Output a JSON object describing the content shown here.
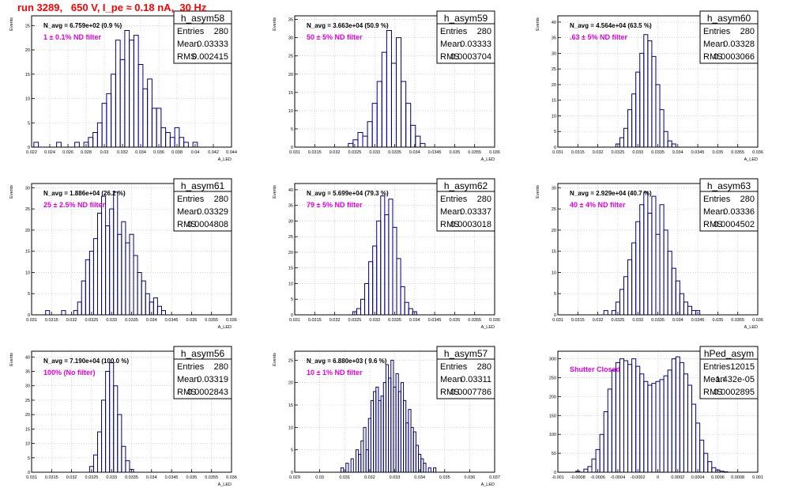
{
  "run_title": "run 3289,   650 V, I_pe ≈ 0.18 nA,  30 Hz",
  "colors": {
    "line": "#000080",
    "annotation": "#e000e0",
    "title": "#ff0000",
    "grid": "#bbbbbb"
  },
  "chart_data": [
    {
      "type": "histogram",
      "name": "h_asym58",
      "stats": [
        [
          "Entries",
          "280"
        ],
        [
          "Mean",
          "0.03333"
        ],
        [
          "RMS",
          "0.002415"
        ]
      ],
      "navg": "N_avg = 6.759e+02 (0.9 %)",
      "filter": "1 ± 0.1% ND filter",
      "ylabel": "Events",
      "xlabel": "A_LED",
      "xlim": [
        0.022,
        0.044
      ],
      "ylim": [
        0,
        27
      ],
      "xticks": [
        0.022,
        0.024,
        0.026,
        0.028,
        0.03,
        0.032,
        0.034,
        0.036,
        0.038,
        0.04,
        0.042,
        0.044
      ],
      "xtick_labels": [
        "0.022",
        "0.024",
        "0.026",
        "0.028",
        "0.03",
        "0.032",
        "0.034",
        "0.036",
        "0.038",
        "0.04",
        "0.042",
        "0.044"
      ],
      "yticks": [
        0,
        5,
        10,
        15,
        20,
        25
      ],
      "ytick_labels": [
        "0",
        "5",
        "10",
        "15",
        "20",
        "25"
      ],
      "bins": {
        "x": [
          0.0225,
          0.025,
          0.027,
          0.028,
          0.0285,
          0.029,
          0.0295,
          0.03,
          0.0305,
          0.031,
          0.0315,
          0.032,
          0.0325,
          0.033,
          0.0335,
          0.034,
          0.0345,
          0.035,
          0.0355,
          0.036,
          0.0365,
          0.037,
          0.0375,
          0.038,
          0.0385,
          0.039,
          0.04
        ],
        "y": [
          1,
          1,
          1,
          1,
          2,
          3,
          5,
          9,
          11,
          15,
          22,
          18,
          24,
          22,
          23,
          17,
          12,
          14,
          8,
          8,
          4,
          3,
          2,
          4,
          2,
          1,
          1
        ]
      }
    },
    {
      "type": "histogram",
      "name": "h_asym59",
      "stats": [
        [
          "Entries",
          "280"
        ],
        [
          "Mean",
          "0.03333"
        ],
        [
          "RMS",
          "0.0003704"
        ]
      ],
      "navg": "N_avg = 3.663e+04 (50.9 %)",
      "filter": "50 ± 5% ND filter",
      "ylabel": "Events",
      "xlabel": "A_LED",
      "xlim": [
        0.031,
        0.036
      ],
      "ylim": [
        0,
        36
      ],
      "xticks": [
        0.031,
        0.0315,
        0.032,
        0.0325,
        0.033,
        0.0335,
        0.034,
        0.0345,
        0.035,
        0.0355,
        0.036
      ],
      "xtick_labels": [
        "0.031",
        "0.0315",
        "0.032",
        "0.0325",
        "0.033",
        "0.0335",
        "0.034",
        "0.0345",
        "0.035",
        "0.0355",
        "0.036"
      ],
      "yticks": [
        0,
        5,
        10,
        15,
        20,
        25,
        30,
        35
      ],
      "ytick_labels": [
        "0",
        "5",
        "10",
        "15",
        "20",
        "25",
        "30",
        "35"
      ],
      "bins": {
        "x": [
          0.0324,
          0.03252,
          0.03264,
          0.03276,
          0.03288,
          0.033,
          0.03312,
          0.03324,
          0.03336,
          0.03348,
          0.0336,
          0.03372,
          0.03384,
          0.03396,
          0.03408,
          0.0342
        ],
        "y": [
          1,
          2,
          4,
          3,
          7,
          12,
          18,
          26,
          32,
          23,
          30,
          18,
          12,
          6,
          3,
          1
        ]
      }
    },
    {
      "type": "histogram",
      "name": "h_asym60",
      "stats": [
        [
          "Entries",
          "280"
        ],
        [
          "Mean",
          "0.03328"
        ],
        [
          "RMS",
          "0.0003066"
        ]
      ],
      "navg": "N_avg = 4.564e+04 (63.5 %)",
      "filter": ".63 ± 5% ND filter",
      "ylabel": "Events",
      "xlabel": "A_LED",
      "xlim": [
        0.031,
        0.036
      ],
      "ylim": [
        0,
        42
      ],
      "xticks": [
        0.031,
        0.0315,
        0.032,
        0.0325,
        0.033,
        0.0335,
        0.034,
        0.0345,
        0.035,
        0.0355,
        0.036
      ],
      "xtick_labels": [
        "0.031",
        "0.0315",
        "0.032",
        "0.0325",
        "0.033",
        "0.0335",
        "0.034",
        "0.0345",
        "0.035",
        "0.0355",
        "0.036"
      ],
      "yticks": [
        0,
        5,
        10,
        15,
        20,
        25,
        30,
        35,
        40
      ],
      "ytick_labels": [
        "0",
        "5",
        "10",
        "15",
        "20",
        "25",
        "30",
        "35",
        "40"
      ],
      "bins": {
        "x": [
          0.0325,
          0.0326,
          0.0327,
          0.0328,
          0.0329,
          0.033,
          0.0331,
          0.0332,
          0.0333,
          0.0334,
          0.0335,
          0.0336,
          0.0337,
          0.0338,
          0.0339
        ],
        "y": [
          1,
          3,
          6,
          12,
          17,
          24,
          30,
          36,
          34,
          29,
          20,
          12,
          5,
          2,
          1
        ]
      }
    },
    {
      "type": "histogram",
      "name": "h_asym61",
      "stats": [
        [
          "Entries",
          "280"
        ],
        [
          "Mean",
          "0.03329"
        ],
        [
          "RMS",
          "0.0004808"
        ]
      ],
      "navg": "N_avg = 1.886e+04 (26.2 %)",
      "filter": "25 ± 2.5% ND filter",
      "ylabel": "Events",
      "xlabel": "A_LED",
      "xlim": [
        0.031,
        0.036
      ],
      "ylim": [
        0,
        31
      ],
      "xticks": [
        0.031,
        0.0315,
        0.032,
        0.0325,
        0.033,
        0.0335,
        0.034,
        0.0345,
        0.035,
        0.0355,
        0.036
      ],
      "xtick_labels": [
        "0.031",
        "0.0315",
        "0.032",
        "0.0325",
        "0.033",
        "0.0335",
        "0.034",
        "0.0345",
        "0.035",
        "0.0355",
        "0.036"
      ],
      "yticks": [
        0,
        5,
        10,
        15,
        20,
        25,
        30
      ],
      "ytick_labels": [
        "0",
        "5",
        "10",
        "15",
        "20",
        "25",
        "30"
      ],
      "bins": {
        "x": [
          0.0314,
          0.0318,
          0.0321,
          0.0322,
          0.0323,
          0.0324,
          0.0325,
          0.0326,
          0.0327,
          0.0328,
          0.0329,
          0.033,
          0.0331,
          0.0332,
          0.0333,
          0.0334,
          0.0335,
          0.0336,
          0.0337,
          0.0338,
          0.0339,
          0.034,
          0.0341,
          0.0342,
          0.0343
        ],
        "y": [
          1,
          1,
          1,
          3,
          8,
          13,
          15,
          18,
          24,
          28,
          21,
          25,
          29,
          19,
          22,
          17,
          19,
          14,
          10,
          8,
          5,
          3,
          4,
          2,
          1
        ]
      }
    },
    {
      "type": "histogram",
      "name": "h_asym62",
      "stats": [
        [
          "Entries",
          "280"
        ],
        [
          "Mean",
          "0.03337"
        ],
        [
          "RMS",
          "0.0003018"
        ]
      ],
      "navg": "N_avg = 5.699e+04 (79.3 %)",
      "filter": "79 ± 5% ND filter",
      "ylabel": "Events",
      "xlabel": "A_LED",
      "xlim": [
        0.031,
        0.036
      ],
      "ylim": [
        0,
        42
      ],
      "xticks": [
        0.031,
        0.0315,
        0.032,
        0.0325,
        0.033,
        0.0335,
        0.034,
        0.0345,
        0.035,
        0.0355,
        0.036
      ],
      "xtick_labels": [
        "0.031",
        "0.0315",
        "0.032",
        "0.0325",
        "0.033",
        "0.0335",
        "0.034",
        "0.0345",
        "0.035",
        "0.0355",
        "0.036"
      ],
      "yticks": [
        0,
        5,
        10,
        15,
        20,
        25,
        30,
        35,
        40
      ],
      "ytick_labels": [
        "0",
        "5",
        "10",
        "15",
        "20",
        "25",
        "30",
        "35",
        "40"
      ],
      "bins": {
        "x": [
          0.0325,
          0.0326,
          0.0327,
          0.0328,
          0.0329,
          0.033,
          0.0331,
          0.0332,
          0.0333,
          0.0334,
          0.0335,
          0.0336,
          0.0337,
          0.0338,
          0.0339,
          0.034
        ],
        "y": [
          1,
          2,
          5,
          10,
          17,
          22,
          30,
          38,
          32,
          37,
          28,
          18,
          9,
          4,
          2,
          1
        ]
      }
    },
    {
      "type": "histogram",
      "name": "h_asym63",
      "stats": [
        [
          "Entries",
          "280"
        ],
        [
          "Mean",
          "0.03336"
        ],
        [
          "RMS",
          "0.0004502"
        ]
      ],
      "navg": "N_avg = 2.929e+04 (40.7 %)",
      "filter": "40 ± 4% ND filter",
      "ylabel": "Events",
      "xlabel": "A_LED",
      "xlim": [
        0.031,
        0.036
      ],
      "ylim": [
        0,
        31
      ],
      "xticks": [
        0.031,
        0.0315,
        0.032,
        0.0325,
        0.033,
        0.0335,
        0.034,
        0.0345,
        0.035,
        0.0355,
        0.036
      ],
      "xtick_labels": [
        "0.031",
        "0.0315",
        "0.032",
        "0.0325",
        "0.033",
        "0.0335",
        "0.034",
        "0.0345",
        "0.035",
        "0.0355",
        "0.036"
      ],
      "yticks": [
        0,
        5,
        10,
        15,
        20,
        25,
        30
      ],
      "ytick_labels": [
        "0",
        "5",
        "10",
        "15",
        "20",
        "25",
        "30"
      ],
      "bins": {
        "x": [
          0.0322,
          0.0324,
          0.0325,
          0.0326,
          0.0327,
          0.0328,
          0.0329,
          0.033,
          0.0331,
          0.0332,
          0.0333,
          0.0334,
          0.0335,
          0.0336,
          0.0337,
          0.0338,
          0.0339,
          0.034,
          0.0341,
          0.0342,
          0.0343,
          0.0344,
          0.0345
        ],
        "y": [
          1,
          1,
          3,
          6,
          9,
          13,
          17,
          22,
          26,
          29,
          24,
          28,
          19,
          26,
          20,
          15,
          11,
          8,
          5,
          3,
          2,
          1,
          1
        ]
      }
    },
    {
      "type": "histogram",
      "name": "h_asym56",
      "stats": [
        [
          "Entries",
          "280"
        ],
        [
          "Mean",
          "0.03319"
        ],
        [
          "RMS",
          "0.0002843"
        ]
      ],
      "navg": "N_avg = 7.190e+04 (100.0 %)",
      "filter": "100% (No filter)",
      "ylabel": "Events",
      "xlabel": "A_LED",
      "xlim": [
        0.031,
        0.036
      ],
      "ylim": [
        0,
        42
      ],
      "xticks": [
        0.031,
        0.0315,
        0.032,
        0.0325,
        0.033,
        0.0335,
        0.034,
        0.0345,
        0.035,
        0.0355,
        0.036
      ],
      "xtick_labels": [
        "0.031",
        "0.0315",
        "0.032",
        "0.0325",
        "0.033",
        "0.0335",
        "0.034",
        "0.0345",
        "0.035",
        "0.0355",
        "0.036"
      ],
      "yticks": [
        0,
        5,
        10,
        15,
        20,
        25,
        30,
        35,
        40
      ],
      "ytick_labels": [
        "0",
        "5",
        "10",
        "15",
        "20",
        "25",
        "30",
        "35",
        "40"
      ],
      "bins": {
        "x": [
          0.0325,
          0.0326,
          0.0327,
          0.0328,
          0.0329,
          0.033,
          0.0331,
          0.0332,
          0.0333,
          0.0334,
          0.0335
        ],
        "y": [
          2,
          6,
          14,
          25,
          35,
          38,
          30,
          20,
          9,
          4,
          1
        ]
      }
    },
    {
      "type": "histogram",
      "name": "h_asym57",
      "stats": [
        [
          "Entries",
          "280"
        ],
        [
          "Mean",
          "0.03311"
        ],
        [
          "RMS",
          "0.0007786"
        ]
      ],
      "navg": "N_avg = 6.880e+03 ( 9.6 %)",
      "filter": "10 ± 1% ND filter",
      "ylabel": "Events",
      "xlabel": "A_LED",
      "xlim": [
        0.029,
        0.037
      ],
      "ylim": [
        0,
        27
      ],
      "xticks": [
        0.029,
        0.03,
        0.031,
        0.032,
        0.033,
        0.034,
        0.035,
        0.036,
        0.037
      ],
      "xtick_labels": [
        "0.029",
        "0.03",
        "0.031",
        "0.032",
        "0.033",
        "0.034",
        "0.035",
        "0.036",
        "0.037"
      ],
      "yticks": [
        0,
        5,
        10,
        15,
        20,
        25
      ],
      "ytick_labels": [
        "0",
        "5",
        "10",
        "15",
        "20",
        "25"
      ],
      "bins": {
        "x": [
          0.0309,
          0.0311,
          0.0313,
          0.0315,
          0.0316,
          0.0317,
          0.0318,
          0.0319,
          0.032,
          0.0321,
          0.0322,
          0.0323,
          0.0324,
          0.0325,
          0.0326,
          0.0327,
          0.0328,
          0.0329,
          0.033,
          0.0331,
          0.0332,
          0.0333,
          0.0334,
          0.0335,
          0.0336,
          0.0337,
          0.0338,
          0.0339,
          0.034,
          0.0341,
          0.0342,
          0.0344,
          0.0346
        ],
        "y": [
          1,
          2,
          3,
          5,
          4,
          7,
          10,
          5,
          12,
          16,
          18,
          19,
          16,
          17,
          20,
          24,
          21,
          25,
          19,
          22,
          18,
          20,
          16,
          11,
          14,
          10,
          9,
          6,
          4,
          3,
          2,
          1,
          1
        ]
      }
    },
    {
      "type": "histogram",
      "name": "hPed_asym",
      "stats": [
        [
          "Entries",
          "12015"
        ],
        [
          "Mean",
          "-1.432e-05"
        ],
        [
          "RMS",
          "0.0002895"
        ]
      ],
      "navg": "",
      "filter": "Shutter Closed",
      "ylabel": "",
      "xlabel": "",
      "xlim": [
        -0.001,
        0.001
      ],
      "ylim": [
        0,
        320
      ],
      "xticks": [
        -0.001,
        -0.0008,
        -0.0006,
        -0.0004,
        -0.0002,
        0,
        0.0002,
        0.0004,
        0.0006,
        0.0008,
        0.001
      ],
      "xtick_labels": [
        "-0.001",
        "-0.0008",
        "-0.0006",
        "-0.0004",
        "-0.0002",
        "0",
        "0.0002",
        "0.0004",
        "0.0006",
        "0.0008",
        "0.001"
      ],
      "yticks": [
        0,
        50,
        100,
        150,
        200,
        250,
        300
      ],
      "ytick_labels": [
        "0",
        "50",
        "100",
        "150",
        "200",
        "250",
        "300"
      ],
      "bins": {
        "x": [
          -0.0008,
          -0.00072,
          -0.00068,
          -0.00064,
          -0.0006,
          -0.00056,
          -0.00052,
          -0.00048,
          -0.00044,
          -0.0004,
          -0.00036,
          -0.00032,
          -0.00028,
          -0.00024,
          -0.0002,
          -0.00016,
          -0.00012,
          -8e-05,
          -4e-05,
          0.0,
          4e-05,
          8e-05,
          0.00012,
          0.00016,
          0.0002,
          0.00024,
          0.00028,
          0.00032,
          0.00036,
          0.0004,
          0.00044,
          0.00048,
          0.00052,
          0.00056,
          0.0006,
          0.00064,
          0.00068
        ],
        "y": [
          3,
          8,
          15,
          35,
          60,
          100,
          160,
          220,
          270,
          290,
          300,
          295,
          285,
          300,
          280,
          260,
          240,
          230,
          235,
          240,
          245,
          255,
          270,
          300,
          305,
          290,
          260,
          230,
          180,
          130,
          85,
          50,
          28,
          12,
          6,
          3,
          1
        ]
      }
    }
  ]
}
